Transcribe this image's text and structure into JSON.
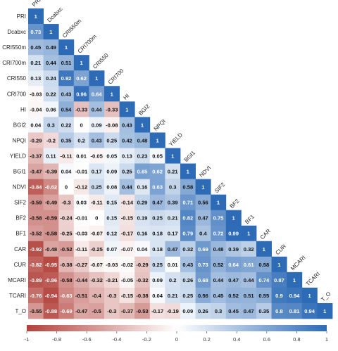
{
  "chart_data": {
    "type": "heatmap",
    "title": "",
    "xlabel": "",
    "ylabel": "",
    "variables": [
      "PRI",
      "Dcabxc",
      "CRI550m",
      "CRI700m",
      "CRI550",
      "CRI700",
      "HI",
      "BGI2",
      "NPQI",
      "YIELD",
      "BGI1",
      "NDVI",
      "SIF2",
      "BF2",
      "BF1",
      "CAR",
      "CUR",
      "MCARI",
      "TCARI",
      "T_O"
    ],
    "matrix": [
      [
        1
      ],
      [
        0.73,
        1
      ],
      [
        0.45,
        0.49,
        1
      ],
      [
        0.21,
        0.44,
        0.51,
        1
      ],
      [
        0.13,
        0.24,
        0.92,
        0.62,
        1
      ],
      [
        -0.03,
        0.22,
        0.43,
        0.96,
        0.64,
        1
      ],
      [
        -0.04,
        0.06,
        0.54,
        -0.33,
        0.44,
        -0.33,
        1
      ],
      [
        0.04,
        0.3,
        0.22,
        0,
        0.09,
        -0.08,
        0.43,
        1
      ],
      [
        -0.29,
        -0.2,
        0.35,
        0.2,
        0.43,
        0.25,
        0.42,
        0.48,
        1
      ],
      [
        -0.37,
        0.11,
        -0.11,
        0.01,
        -0.05,
        0.05,
        0.13,
        0.23,
        0.05,
        1
      ],
      [
        -0.47,
        -0.39,
        0.04,
        -0.01,
        0.17,
        0.09,
        0.25,
        0.65,
        0.62,
        0.21,
        1
      ],
      [
        -0.84,
        -0.62,
        0,
        -0.12,
        0.25,
        0.08,
        0.44,
        0.16,
        0.63,
        0.3,
        0.58,
        1
      ],
      [
        -0.59,
        -0.49,
        -0.3,
        0.03,
        -0.11,
        0.15,
        -0.14,
        0.29,
        0.47,
        0.39,
        0.71,
        0.56,
        1
      ],
      [
        -0.58,
        -0.59,
        -0.24,
        -0.01,
        0,
        0.15,
        -0.15,
        0.19,
        0.25,
        0.21,
        0.82,
        0.47,
        0.75,
        1
      ],
      [
        -0.52,
        -0.58,
        -0.25,
        -0.03,
        -0.07,
        0.12,
        -0.17,
        0.16,
        0.18,
        0.17,
        0.79,
        0.4,
        0.72,
        0.99,
        1
      ],
      [
        -0.92,
        -0.48,
        -0.52,
        -0.11,
        -0.25,
        0.07,
        -0.07,
        0.04,
        0.18,
        0.47,
        0.32,
        0.69,
        0.48,
        0.39,
        0.32,
        1
      ],
      [
        -0.82,
        -0.95,
        -0.38,
        -0.27,
        -0.07,
        -0.03,
        -0.02,
        -0.29,
        0.25,
        0.01,
        0.43,
        0.73,
        0.52,
        0.64,
        0.61,
        0.58,
        1
      ],
      [
        -0.89,
        -0.86,
        -0.58,
        -0.44,
        -0.32,
        -0.21,
        -0.05,
        -0.32,
        0.09,
        0.2,
        0.26,
        0.68,
        0.44,
        0.47,
        0.44,
        0.74,
        0.87,
        1
      ],
      [
        -0.76,
        -0.94,
        -0.63,
        -0.51,
        -0.4,
        -0.3,
        -0.15,
        -0.38,
        0.04,
        0.21,
        0.25,
        0.56,
        0.45,
        0.52,
        0.51,
        0.55,
        0.9,
        0.94,
        1
      ],
      [
        -0.55,
        -0.88,
        -0.69,
        -0.47,
        -0.5,
        -0.3,
        -0.37,
        -0.53,
        -0.17,
        -0.19,
        0.09,
        0.26,
        0.3,
        0.45,
        0.47,
        0.35,
        0.8,
        0.81,
        0.94,
        1
      ]
    ],
    "colorbar": {
      "ticks": [
        -1,
        -0.8,
        -0.6,
        -0.4,
        -0.2,
        0,
        0.2,
        0.4,
        0.6,
        0.8,
        1
      ],
      "tick_labels": [
        "-1",
        "-0.8",
        "-0.6",
        "-0.4",
        "-0.2",
        "0",
        "0.2",
        "0.4",
        "0.6",
        "0.8",
        "1"
      ],
      "range": [
        -1,
        1
      ],
      "neg_color": "#B2413A",
      "mid_color": "#FFFFFF",
      "pos_color": "#2D6BB7"
    },
    "legend_placement": "bottom",
    "grid": false
  }
}
